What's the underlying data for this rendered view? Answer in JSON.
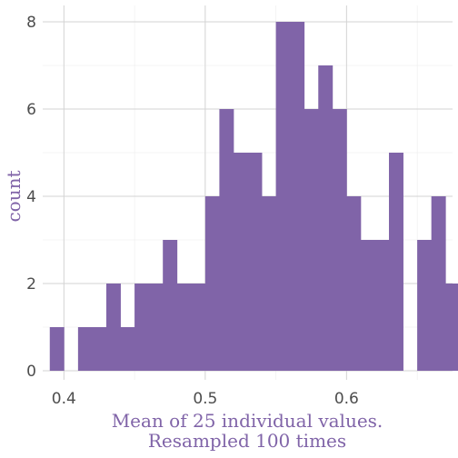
{
  "chart_data": {
    "type": "bar",
    "subtype": "histogram",
    "xlabel_lines": [
      "Mean of 25 individual values.",
      "Resampled 100 times"
    ],
    "ylabel": "count",
    "bar_color": "#8064a8",
    "bin_width": 0.01,
    "xlim": [
      0.385,
      0.675
    ],
    "ylim": [
      0,
      8
    ],
    "x_ticks": [
      0.4,
      0.5,
      0.6
    ],
    "x_tick_labels": [
      "0.4",
      "0.5",
      "0.6"
    ],
    "y_ticks": [
      0,
      2,
      4,
      6,
      8
    ],
    "y_tick_labels": [
      "0",
      "2",
      "4",
      "6",
      "8"
    ],
    "grid": true,
    "bins": [
      {
        "x": 0.395,
        "count": 1
      },
      {
        "x": 0.405,
        "count": 0
      },
      {
        "x": 0.415,
        "count": 1
      },
      {
        "x": 0.425,
        "count": 1
      },
      {
        "x": 0.435,
        "count": 2
      },
      {
        "x": 0.445,
        "count": 1
      },
      {
        "x": 0.455,
        "count": 2
      },
      {
        "x": 0.465,
        "count": 2
      },
      {
        "x": 0.475,
        "count": 3
      },
      {
        "x": 0.485,
        "count": 2
      },
      {
        "x": 0.495,
        "count": 2
      },
      {
        "x": 0.505,
        "count": 4
      },
      {
        "x": 0.515,
        "count": 6
      },
      {
        "x": 0.525,
        "count": 5
      },
      {
        "x": 0.535,
        "count": 5
      },
      {
        "x": 0.545,
        "count": 4
      },
      {
        "x": 0.555,
        "count": 8
      },
      {
        "x": 0.565,
        "count": 8
      },
      {
        "x": 0.575,
        "count": 6
      },
      {
        "x": 0.585,
        "count": 7
      },
      {
        "x": 0.595,
        "count": 6
      },
      {
        "x": 0.605,
        "count": 4
      },
      {
        "x": 0.615,
        "count": 3
      },
      {
        "x": 0.625,
        "count": 3
      },
      {
        "x": 0.635,
        "count": 5
      },
      {
        "x": 0.645,
        "count": 0
      },
      {
        "x": 0.655,
        "count": 3
      },
      {
        "x": 0.665,
        "count": 4
      },
      {
        "x": 0.675,
        "count": 2
      }
    ]
  }
}
